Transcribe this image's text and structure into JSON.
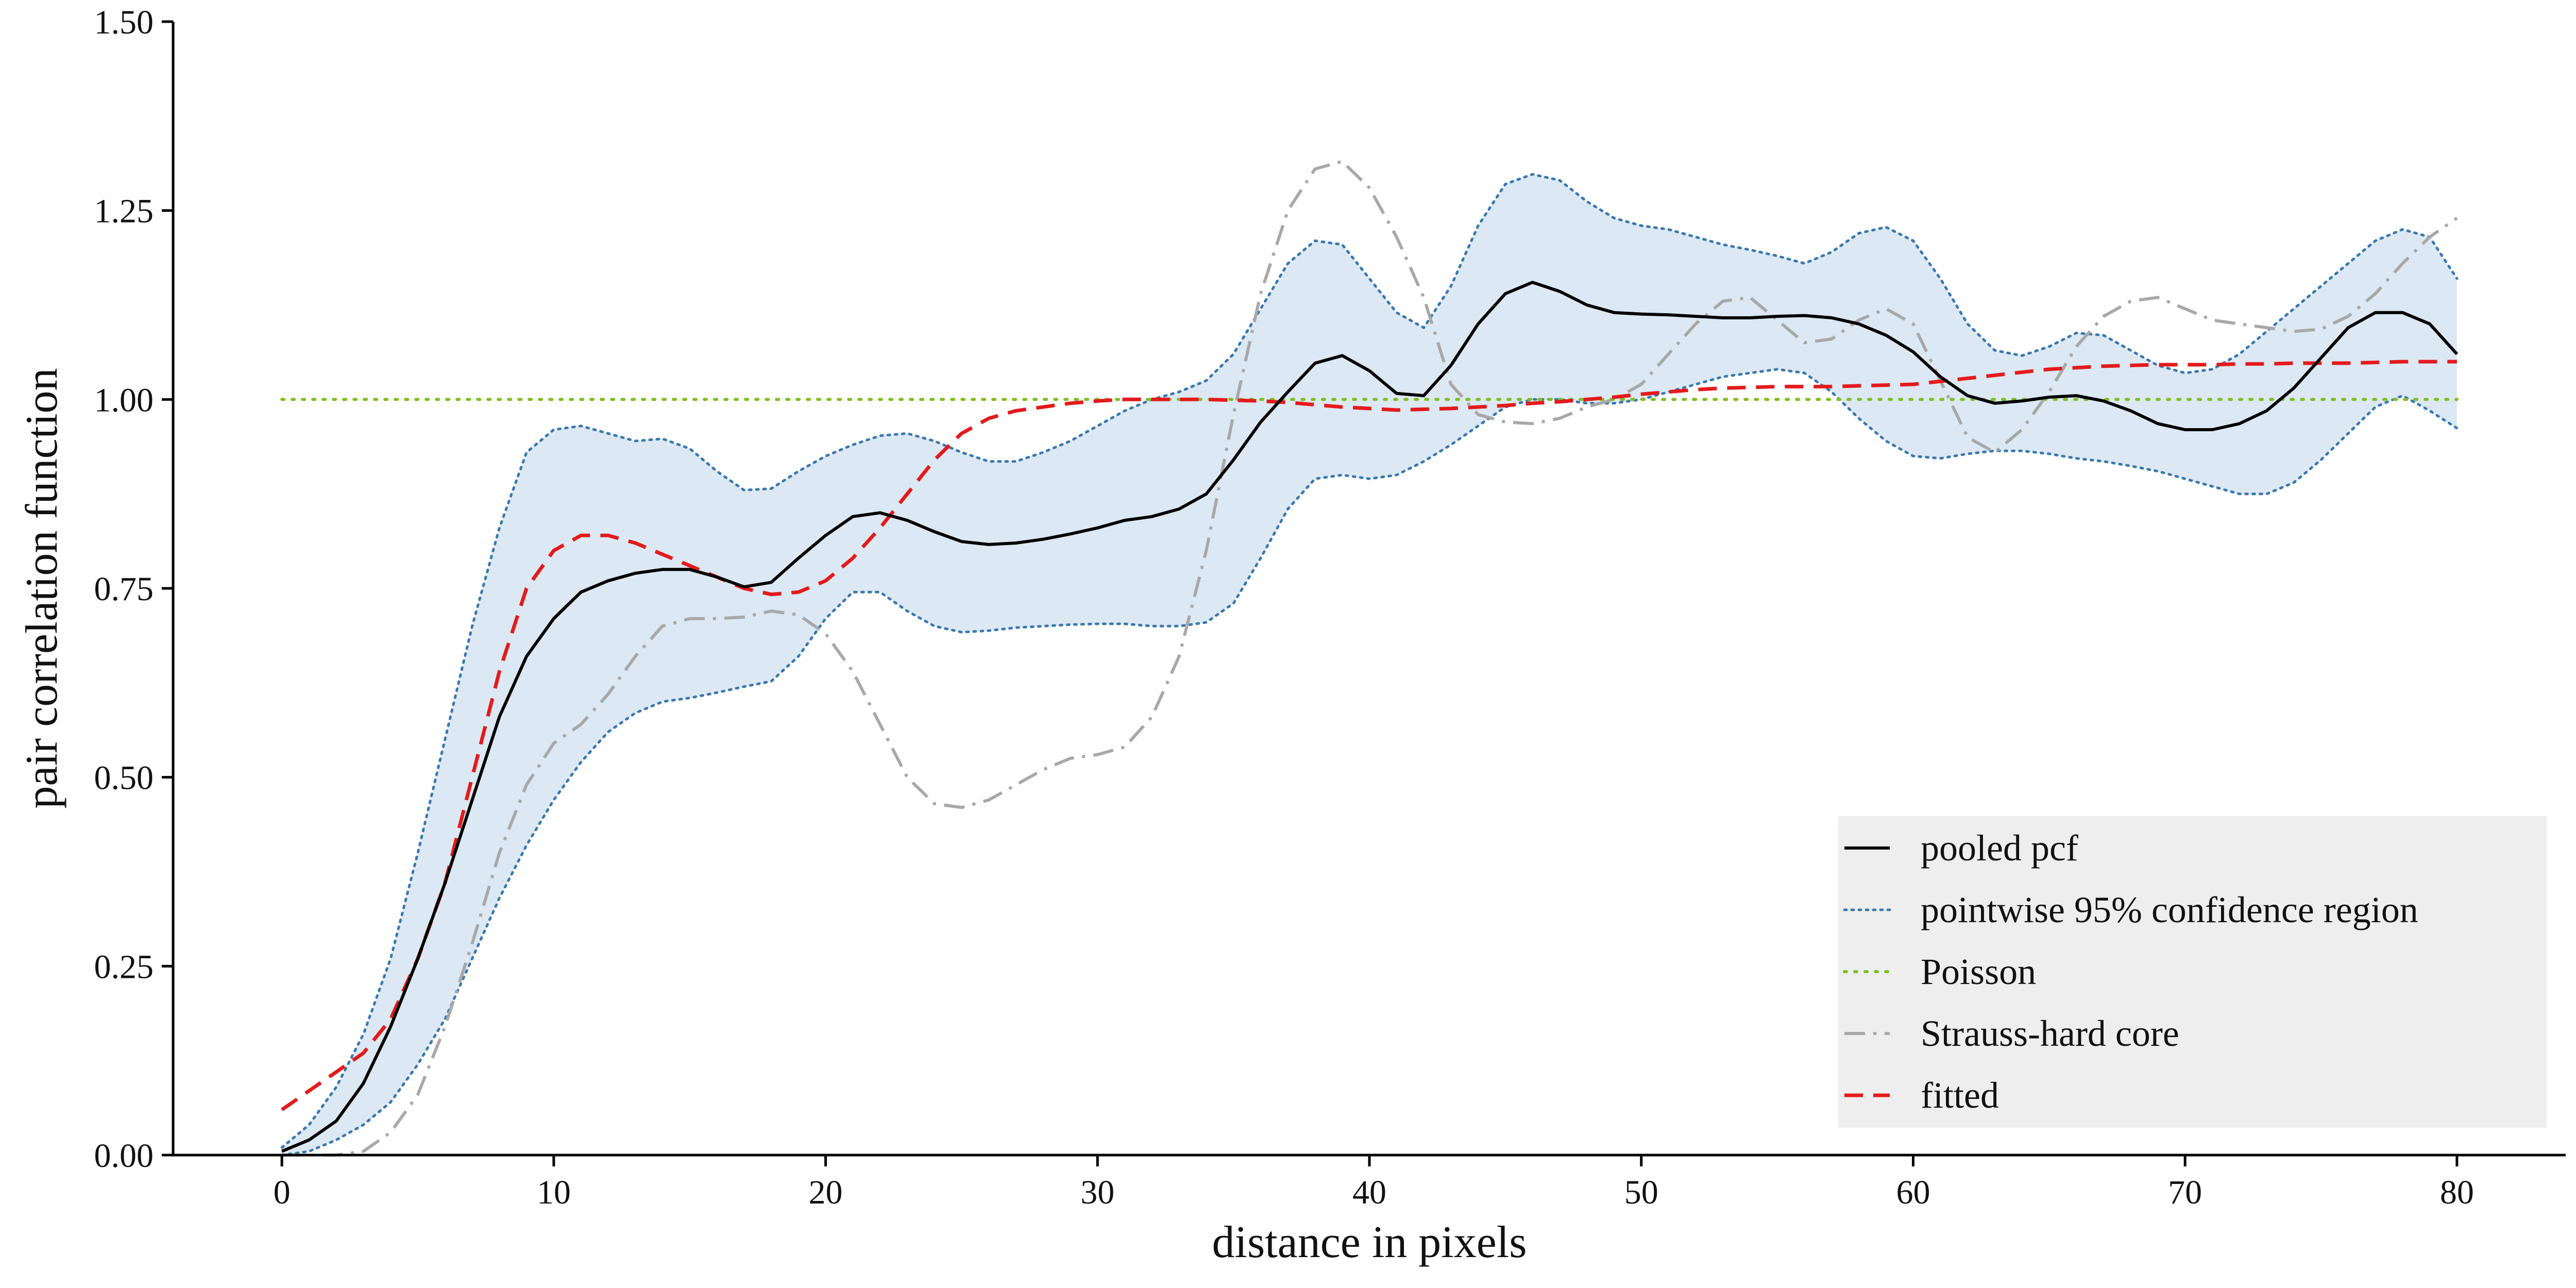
{
  "chart_data": {
    "type": "line",
    "title": "",
    "xlabel": "distance in pixels",
    "ylabel": "pair correlation function",
    "xlim": [
      -4,
      84
    ],
    "ylim": [
      0,
      1.5
    ],
    "x_ticks": [
      "0",
      "10",
      "20",
      "30",
      "40",
      "50",
      "60",
      "70",
      "80"
    ],
    "y_ticks": [
      "0.00",
      "0.25",
      "0.50",
      "0.75",
      "1.00",
      "1.25",
      "1.50"
    ],
    "grid": false,
    "legend_position": "bottom-right",
    "legend": [
      "pooled pcf",
      "pointwise 95% confidence region",
      "Poisson",
      "Strauss-hard core",
      "fitted"
    ],
    "colors": {
      "pooled": "#000000",
      "band_fill": "#dce8f3",
      "band_edge": "#3a78b0",
      "poisson": "#7fbf1f",
      "strauss": "#a8a8a8",
      "fitted": "#e41a1c",
      "legend_bg": "#eeeeee"
    },
    "series": [
      {
        "name": "pooled pcf",
        "style": "solid",
        "x": [
          0,
          1,
          2,
          3,
          4,
          5,
          6,
          7,
          8,
          9,
          10,
          11,
          12,
          13,
          14,
          15,
          16,
          17,
          18,
          19,
          20,
          21,
          22,
          23,
          24,
          25,
          26,
          27,
          28,
          29,
          30,
          31,
          32,
          33,
          34,
          35,
          36,
          37,
          38,
          39,
          40,
          41,
          42,
          43,
          44,
          45,
          46,
          47,
          48,
          49,
          50,
          51,
          52,
          53,
          54,
          55,
          56,
          57,
          58,
          59,
          60,
          61,
          62,
          63,
          64,
          65,
          66,
          67,
          68,
          69,
          70,
          71,
          72,
          73,
          74,
          75,
          76,
          77,
          78,
          79,
          80
        ],
        "y": [
          0.005,
          0.02,
          0.045,
          0.095,
          0.17,
          0.26,
          0.36,
          0.47,
          0.58,
          0.66,
          0.71,
          0.745,
          0.76,
          0.77,
          0.775,
          0.775,
          0.765,
          0.752,
          0.758,
          0.79,
          0.82,
          0.845,
          0.85,
          0.84,
          0.825,
          0.812,
          0.808,
          0.81,
          0.815,
          0.822,
          0.83,
          0.84,
          0.845,
          0.855,
          0.875,
          0.92,
          0.97,
          1.01,
          1.048,
          1.058,
          1.038,
          1.008,
          1.005,
          1.045,
          1.1,
          1.14,
          1.155,
          1.143,
          1.125,
          1.115,
          1.113,
          1.112,
          1.11,
          1.108,
          1.108,
          1.11,
          1.111,
          1.108,
          1.1,
          1.085,
          1.063,
          1.03,
          1.005,
          0.995,
          0.998,
          1.003,
          1.005,
          0.998,
          0.985,
          0.968,
          0.96,
          0.96,
          0.968,
          0.985,
          1.015,
          1.055,
          1.095,
          1.115,
          1.115,
          1.1,
          1.06
        ]
      },
      {
        "name": "pointwise 95% confidence region",
        "style": "band",
        "x": [
          0,
          1,
          2,
          3,
          4,
          5,
          6,
          7,
          8,
          9,
          10,
          11,
          12,
          13,
          14,
          15,
          16,
          17,
          18,
          19,
          20,
          21,
          22,
          23,
          24,
          25,
          26,
          27,
          28,
          29,
          30,
          31,
          32,
          33,
          34,
          35,
          36,
          37,
          38,
          39,
          40,
          41,
          42,
          43,
          44,
          45,
          46,
          47,
          48,
          49,
          50,
          51,
          52,
          53,
          54,
          55,
          56,
          57,
          58,
          59,
          60,
          61,
          62,
          63,
          64,
          65,
          66,
          67,
          68,
          69,
          70,
          71,
          72,
          73,
          74,
          75,
          76,
          77,
          78,
          79,
          80
        ],
        "upper": [
          0.01,
          0.04,
          0.09,
          0.16,
          0.26,
          0.4,
          0.55,
          0.7,
          0.83,
          0.93,
          0.96,
          0.965,
          0.955,
          0.945,
          0.948,
          0.935,
          0.905,
          0.88,
          0.882,
          0.905,
          0.925,
          0.94,
          0.952,
          0.955,
          0.945,
          0.93,
          0.918,
          0.918,
          0.93,
          0.945,
          0.965,
          0.985,
          1.0,
          1.01,
          1.025,
          1.06,
          1.12,
          1.18,
          1.21,
          1.205,
          1.16,
          1.115,
          1.095,
          1.15,
          1.23,
          1.285,
          1.298,
          1.29,
          1.262,
          1.24,
          1.23,
          1.225,
          1.215,
          1.205,
          1.198,
          1.19,
          1.18,
          1.195,
          1.22,
          1.228,
          1.21,
          1.16,
          1.1,
          1.065,
          1.058,
          1.07,
          1.088,
          1.085,
          1.065,
          1.045,
          1.035,
          1.04,
          1.06,
          1.09,
          1.12,
          1.15,
          1.18,
          1.21,
          1.225,
          1.215,
          1.16
        ],
        "lower": [
          0.0,
          0.005,
          0.02,
          0.04,
          0.07,
          0.12,
          0.18,
          0.26,
          0.34,
          0.41,
          0.47,
          0.52,
          0.56,
          0.585,
          0.6,
          0.605,
          0.612,
          0.62,
          0.627,
          0.66,
          0.71,
          0.745,
          0.745,
          0.72,
          0.7,
          0.692,
          0.694,
          0.698,
          0.7,
          0.702,
          0.703,
          0.703,
          0.7,
          0.7,
          0.705,
          0.73,
          0.79,
          0.855,
          0.895,
          0.9,
          0.895,
          0.9,
          0.918,
          0.94,
          0.965,
          0.99,
          1.0,
          1.0,
          0.995,
          0.995,
          1.0,
          1.01,
          1.02,
          1.03,
          1.035,
          1.04,
          1.035,
          1.01,
          0.975,
          0.945,
          0.925,
          0.922,
          0.928,
          0.932,
          0.932,
          0.928,
          0.922,
          0.918,
          0.912,
          0.905,
          0.895,
          0.885,
          0.875,
          0.875,
          0.89,
          0.92,
          0.955,
          0.99,
          1.005,
          0.985,
          0.962
        ]
      },
      {
        "name": "Poisson",
        "style": "dotted",
        "x": [
          0,
          80
        ],
        "y": [
          1.0,
          1.0
        ]
      },
      {
        "name": "Strauss-hard core",
        "style": "dashdot",
        "x": [
          0,
          1,
          2,
          3,
          4,
          5,
          6,
          7,
          8,
          9,
          10,
          11,
          12,
          13,
          14,
          15,
          16,
          17,
          18,
          19,
          20,
          21,
          22,
          23,
          24,
          25,
          26,
          27,
          28,
          29,
          30,
          31,
          32,
          33,
          34,
          35,
          36,
          37,
          38,
          39,
          40,
          41,
          42,
          43,
          44,
          45,
          46,
          47,
          48,
          49,
          50,
          51,
          52,
          53,
          54,
          55,
          56,
          57,
          58,
          59,
          60,
          61,
          62,
          63,
          64,
          65,
          66,
          67,
          68,
          69,
          70,
          71,
          72,
          73,
          74,
          75,
          76,
          77,
          78,
          79,
          80
        ],
        "y": [
          0.0,
          0.0,
          0.0,
          0.005,
          0.03,
          0.08,
          0.17,
          0.28,
          0.4,
          0.49,
          0.545,
          0.57,
          0.61,
          0.66,
          0.7,
          0.71,
          0.71,
          0.712,
          0.72,
          0.715,
          0.69,
          0.64,
          0.57,
          0.5,
          0.465,
          0.46,
          0.47,
          0.49,
          0.51,
          0.525,
          0.53,
          0.54,
          0.58,
          0.66,
          0.8,
          0.98,
          1.14,
          1.25,
          1.305,
          1.315,
          1.28,
          1.215,
          1.135,
          1.02,
          0.98,
          0.97,
          0.968,
          0.975,
          0.99,
          1.0,
          1.02,
          1.06,
          1.1,
          1.13,
          1.135,
          1.105,
          1.075,
          1.08,
          1.105,
          1.12,
          1.1,
          1.025,
          0.95,
          0.93,
          0.96,
          1.01,
          1.07,
          1.11,
          1.13,
          1.135,
          1.12,
          1.105,
          1.1,
          1.095,
          1.09,
          1.093,
          1.11,
          1.14,
          1.18,
          1.215,
          1.24
        ]
      },
      {
        "name": "fitted",
        "style": "dashed",
        "x": [
          0,
          1,
          2,
          3,
          4,
          5,
          6,
          7,
          8,
          9,
          10,
          11,
          12,
          13,
          14,
          15,
          16,
          17,
          18,
          19,
          20,
          21,
          22,
          23,
          24,
          25,
          26,
          27,
          28,
          29,
          30,
          31,
          32,
          33,
          34,
          35,
          36,
          37,
          38,
          39,
          40,
          41,
          42,
          43,
          44,
          45,
          46,
          47,
          48,
          49,
          50,
          51,
          52,
          53,
          54,
          55,
          56,
          57,
          58,
          59,
          60,
          61,
          62,
          63,
          64,
          65,
          66,
          67,
          68,
          69,
          70,
          71,
          72,
          73,
          74,
          75,
          76,
          77,
          78,
          79,
          80
        ],
        "y": [
          0.06,
          0.085,
          0.11,
          0.135,
          0.18,
          0.26,
          0.36,
          0.5,
          0.64,
          0.75,
          0.8,
          0.82,
          0.82,
          0.81,
          0.795,
          0.78,
          0.765,
          0.75,
          0.742,
          0.745,
          0.76,
          0.79,
          0.83,
          0.875,
          0.92,
          0.955,
          0.975,
          0.985,
          0.99,
          0.995,
          0.998,
          1.0,
          1.0,
          1.0,
          1.0,
          0.999,
          0.998,
          0.996,
          0.993,
          0.99,
          0.988,
          0.986,
          0.987,
          0.988,
          0.99,
          0.992,
          0.995,
          0.997,
          1.0,
          1.003,
          1.007,
          1.01,
          1.013,
          1.015,
          1.016,
          1.017,
          1.017,
          1.017,
          1.018,
          1.019,
          1.02,
          1.024,
          1.028,
          1.032,
          1.036,
          1.04,
          1.042,
          1.044,
          1.045,
          1.046,
          1.046,
          1.046,
          1.047,
          1.047,
          1.048,
          1.048,
          1.048,
          1.049,
          1.05,
          1.05,
          1.05
        ]
      }
    ]
  }
}
